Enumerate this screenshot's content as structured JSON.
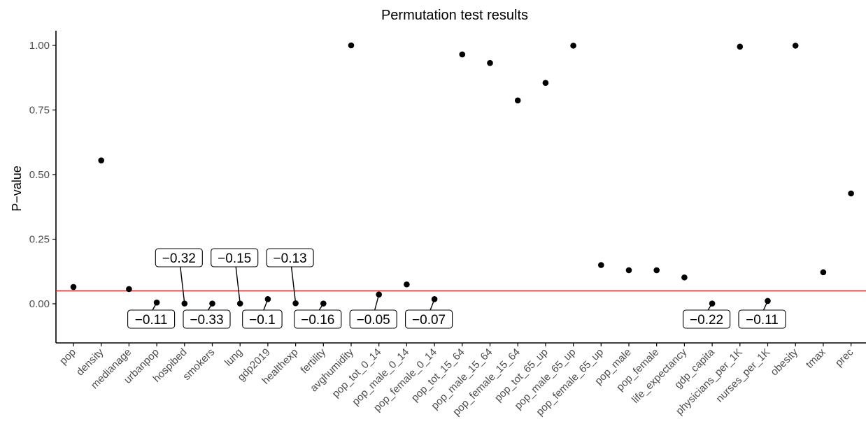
{
  "chart_data": {
    "type": "scatter",
    "title": "Permutation test results",
    "xlabel": "",
    "ylabel": "P−value",
    "ylim": [
      -0.15,
      1.05
    ],
    "yticks": [
      0.0,
      0.25,
      0.5,
      0.75,
      1.0
    ],
    "ytick_labels": [
      "0.00",
      "0.25",
      "0.50",
      "0.75",
      "1.00"
    ],
    "grid": false,
    "legend": "none",
    "colors": {
      "points": "#000000",
      "threshold": "#e41a1c",
      "axis": "#000000",
      "tick_text": "#4d4d4d"
    },
    "threshold": 0.05,
    "categories": [
      "pop",
      "density",
      "medianage",
      "urbanpop",
      "hospibed",
      "smokers",
      "lung",
      "gdp2019",
      "healthexp",
      "fertility",
      "avghumidity",
      "pop_tot_0_14",
      "pop_male_0_14",
      "pop_female_0_14",
      "pop_tot_15_64",
      "pop_male_15_64",
      "pop_female_15_64",
      "pop_tot_65_up",
      "pop_male_65_up",
      "pop_female_65_up",
      "pop_male",
      "pop_female",
      "life_expectancy",
      "gdp_capita",
      "physicians_per_1K",
      "nurses_per_1K",
      "obesity",
      "tmax",
      "prec"
    ],
    "values": [
      0.065,
      0.555,
      0.057,
      0.005,
      0.001,
      0.001,
      0.001,
      0.018,
      0.002,
      0.001,
      1.0,
      0.036,
      0.075,
      0.018,
      0.965,
      0.932,
      0.787,
      0.855,
      0.999,
      0.15,
      0.13,
      0.13,
      0.102,
      0.001,
      0.995,
      0.011,
      0.999,
      0.122,
      0.427
    ],
    "annotations": [
      {
        "category": "urbanpop",
        "text": "−0.11",
        "position": "below"
      },
      {
        "category": "hospibed",
        "text": "−0.32",
        "position": "above"
      },
      {
        "category": "smokers",
        "text": "−0.33",
        "position": "below"
      },
      {
        "category": "lung",
        "text": "−0.15",
        "position": "above"
      },
      {
        "category": "gdp2019",
        "text": "−0.1",
        "position": "below"
      },
      {
        "category": "healthexp",
        "text": "−0.13",
        "position": "above"
      },
      {
        "category": "fertility",
        "text": "−0.16",
        "position": "below"
      },
      {
        "category": "pop_tot_0_14",
        "text": "−0.05",
        "position": "below"
      },
      {
        "category": "pop_female_0_14",
        "text": "−0.07",
        "position": "below"
      },
      {
        "category": "gdp_capita",
        "text": "−0.22",
        "position": "below"
      },
      {
        "category": "nurses_per_1K",
        "text": "−0.11",
        "position": "below"
      }
    ]
  }
}
